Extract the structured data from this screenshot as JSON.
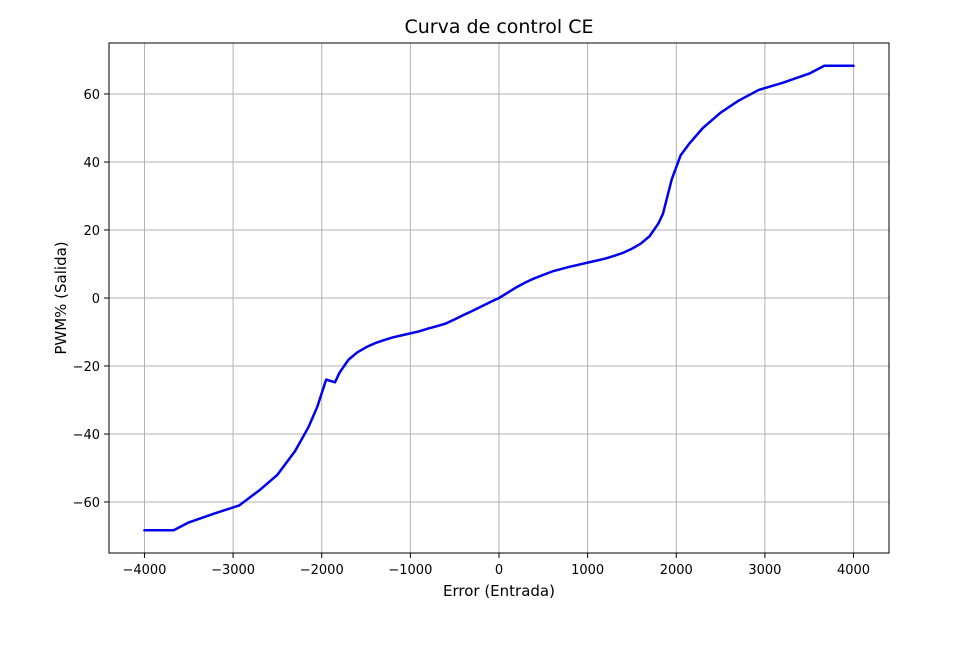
{
  "chart_data": {
    "type": "line",
    "title": "Curva de control CE",
    "xlabel": "Error (Entrada)",
    "ylabel": "PWM% (Salida)",
    "xlim": [
      -4400,
      4400
    ],
    "ylim": [
      -75,
      75
    ],
    "xticks": [
      -4000,
      -3000,
      -2000,
      -1000,
      0,
      1000,
      2000,
      3000,
      4000
    ],
    "xtick_labels": [
      "−4000",
      "−3000",
      "−2000",
      "−1000",
      "0",
      "1000",
      "2000",
      "3000",
      "4000"
    ],
    "yticks": [
      -60,
      -40,
      -20,
      0,
      20,
      40,
      60
    ],
    "ytick_labels": [
      "−60",
      "−40",
      "−20",
      "0",
      "20",
      "40",
      "60"
    ],
    "grid": true,
    "series": [
      {
        "color": "#0000ee",
        "x": [
          -4000,
          -3670,
          -3500,
          -3200,
          -2930,
          -2700,
          -2500,
          -2300,
          -2150,
          -2050,
          -1950,
          -1850,
          -1800,
          -1700,
          -1600,
          -1500,
          -1400,
          -1300,
          -1200,
          -1100,
          -1000,
          -900,
          -800,
          -700,
          -600,
          -500,
          -400,
          -300,
          -200,
          -100,
          0,
          100,
          200,
          300,
          400,
          500,
          600,
          700,
          800,
          900,
          1000,
          1100,
          1200,
          1300,
          1400,
          1500,
          1600,
          1700,
          1800,
          1850,
          1950,
          2050,
          2150,
          2300,
          2500,
          2700,
          2930,
          3200,
          3500,
          3670,
          4000
        ],
        "y": [
          -68.3,
          -68.3,
          -66.0,
          -63.3,
          -61.0,
          -56.5,
          -52.0,
          -45.0,
          -38.0,
          -32.0,
          -24.0,
          -24.8,
          -22.0,
          -18.2,
          -16.0,
          -14.5,
          -13.3,
          -12.4,
          -11.6,
          -11.0,
          -10.4,
          -9.8,
          -9.0,
          -8.3,
          -7.5,
          -6.3,
          -5.0,
          -3.8,
          -2.5,
          -1.2,
          0.0,
          1.6,
          3.2,
          4.6,
          5.8,
          6.8,
          7.8,
          8.5,
          9.2,
          9.8,
          10.4,
          11.0,
          11.6,
          12.4,
          13.3,
          14.5,
          16.0,
          18.2,
          22.0,
          24.8,
          35.0,
          42.0,
          45.5,
          50.0,
          54.5,
          58.0,
          61.2,
          63.3,
          66.0,
          68.3,
          68.3
        ]
      }
    ]
  }
}
